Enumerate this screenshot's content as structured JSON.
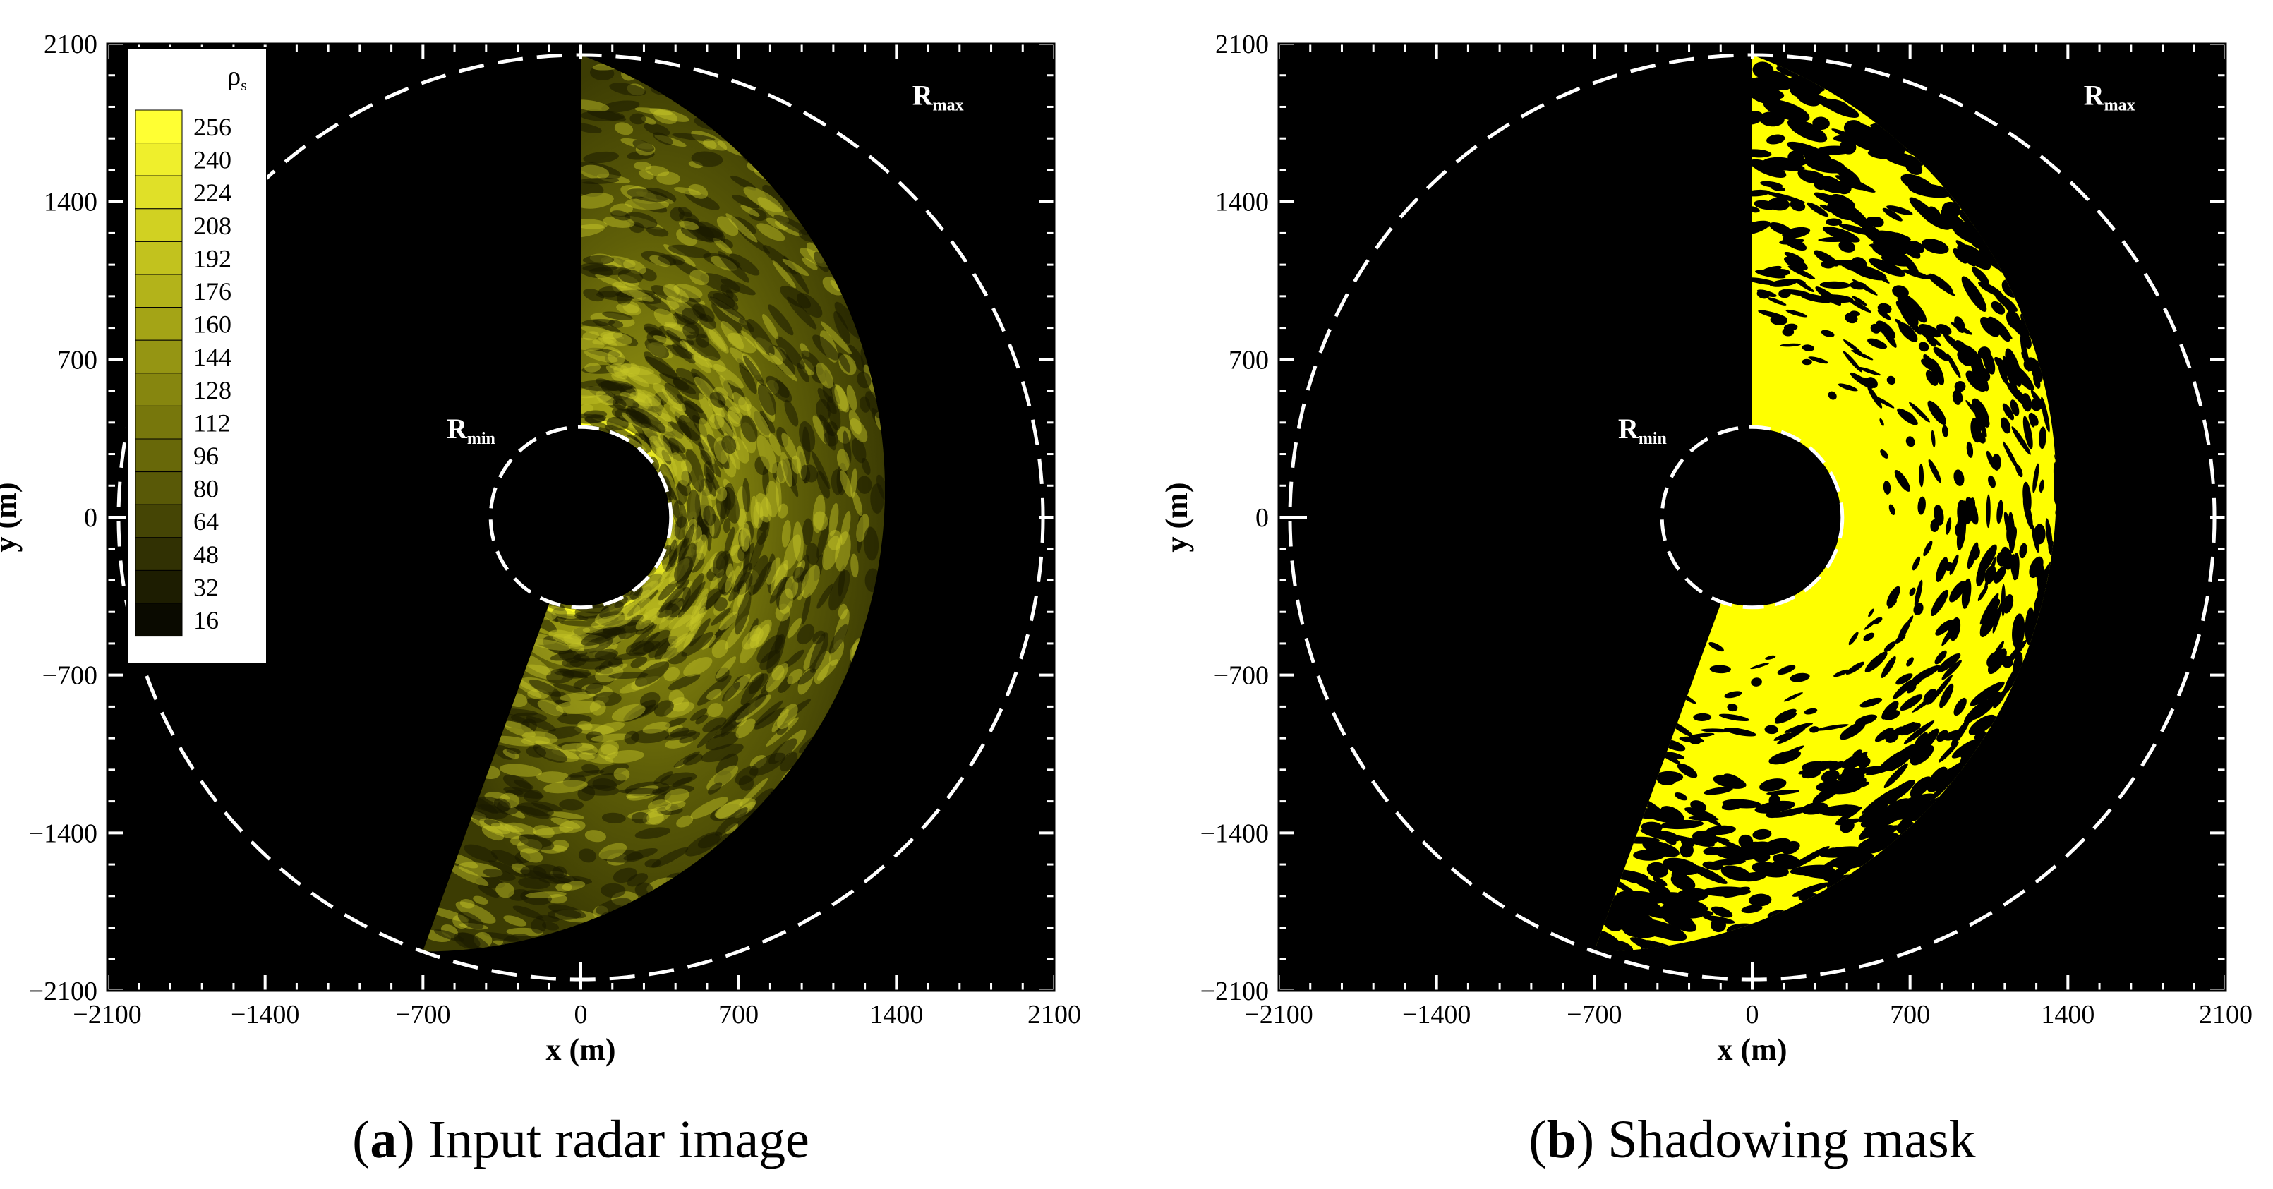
{
  "chart_data": [
    {
      "type": "heatmap",
      "panel_letter": "a",
      "caption": "Input radar image",
      "xlabel": "x (m)",
      "ylabel": "y (m)",
      "xlim": [
        -2100,
        2100
      ],
      "ylim": [
        -2100,
        2100
      ],
      "x_ticks": [
        -2100,
        -1400,
        -700,
        0,
        700,
        1400,
        2100
      ],
      "y_ticks": [
        -2100,
        -1400,
        -700,
        0,
        700,
        1400,
        2100
      ],
      "x_tick_labels": [
        "−2100",
        "−1400",
        "−700",
        "0",
        "700",
        "1400",
        "2100"
      ],
      "y_tick_labels": [
        "−2100",
        "−1400",
        "−700",
        "0",
        "700",
        "1400",
        "2100"
      ],
      "annotations": {
        "r_min": "R",
        "r_min_sub": "min",
        "r_max": "R",
        "r_max_sub": "max"
      },
      "r_min_m": 400,
      "r_max_m": 2050,
      "sector_deg": [
        -110,
        90
      ],
      "colorbar": {
        "title": "ρ",
        "title_sub": "s",
        "levels": [
          256,
          240,
          224,
          208,
          192,
          176,
          160,
          144,
          128,
          112,
          96,
          80,
          64,
          48,
          32,
          16
        ],
        "colors": [
          "#ffff33",
          "#efef2c",
          "#e0e028",
          "#d1d122",
          "#c2c21e",
          "#b3b31a",
          "#a4a416",
          "#959513",
          "#86860f",
          "#77770c",
          "#686809",
          "#595907",
          "#454505",
          "#313103",
          "#1d1d01",
          "#0a0a00"
        ],
        "position": "top-left"
      },
      "grid": false
    },
    {
      "type": "heatmap",
      "panel_letter": "b",
      "caption": "Shadowing mask",
      "xlabel": "x (m)",
      "ylabel": "y (m)",
      "xlim": [
        -2100,
        2100
      ],
      "ylim": [
        -2100,
        2100
      ],
      "x_ticks": [
        -2100,
        -1400,
        -700,
        0,
        700,
        1400,
        2100
      ],
      "y_ticks": [
        -2100,
        -1400,
        -700,
        0,
        700,
        1400,
        2100
      ],
      "x_tick_labels": [
        "−2100",
        "−1400",
        "−700",
        "0",
        "700",
        "1400",
        "2100"
      ],
      "y_tick_labels": [
        "−2100",
        "−1400",
        "−700",
        "0",
        "700",
        "1400",
        "2100"
      ],
      "annotations": {
        "r_min": "R",
        "r_min_sub": "min",
        "r_max": "R",
        "r_max_sub": "max"
      },
      "r_min_m": 400,
      "r_max_m": 2050,
      "sector_deg": [
        -110,
        90
      ],
      "grid": false
    }
  ],
  "colors": {
    "background": "#000000",
    "data_yellow": "#ffff00",
    "boundary_dash": "#ffffff"
  }
}
